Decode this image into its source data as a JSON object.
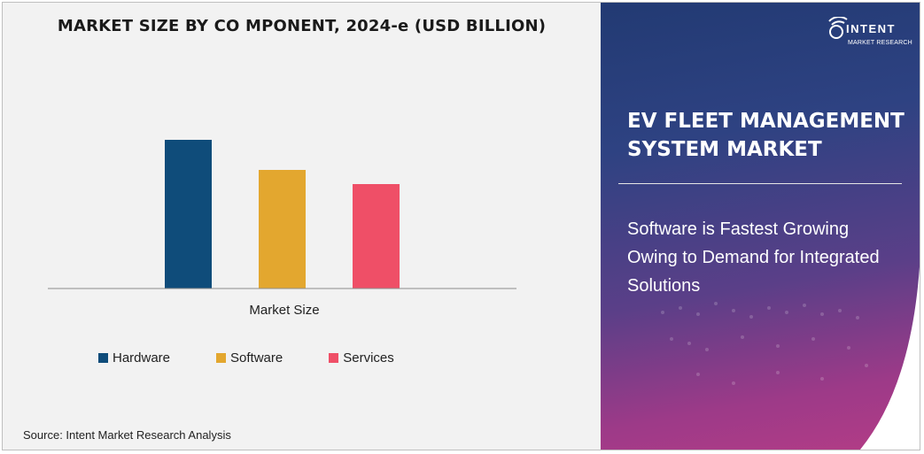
{
  "chart_data": {
    "type": "bar",
    "title": "MARKET SIZE BY CO MPONENT, 2024-e (USD BILLION)",
    "categories": [
      "Market Size"
    ],
    "xlabel": "Market Size",
    "ylabel": "",
    "ylim": [
      0,
      1
    ],
    "grid": false,
    "legend_position": "bottom",
    "series": [
      {
        "name": "Hardware",
        "values": [
          0.84
        ],
        "color": "#0f4c7a"
      },
      {
        "name": "Software",
        "values": [
          0.67
        ],
        "color": "#e3a72f"
      },
      {
        "name": "Services",
        "values": [
          0.59
        ],
        "color": "#ef4f67"
      }
    ],
    "values_note": ""
  },
  "source": "Source: Intent Market Research Analysis",
  "brand": {
    "name": "INTENT",
    "tagline": "MARKET RESEARCH",
    "icon": "signal-globe-icon"
  },
  "side": {
    "title": "EV FLEET MANAGEMENT SYSTEM MARKET",
    "insight": "Software is Fastest Growing Owing to Demand for Integrated Solutions"
  }
}
